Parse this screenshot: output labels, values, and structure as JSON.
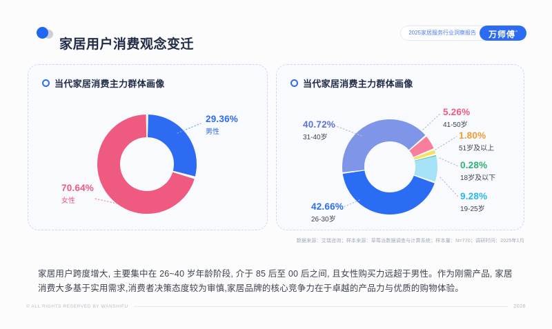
{
  "page": {
    "title": "家居用户消费观念变迁",
    "badge": {
      "report_label": "2025家居服务行业洞察报告",
      "brand": "万师傅",
      "brand_mark": "”"
    },
    "summary": "家居用户跨度增大, 主要集中在 26~40 岁年龄阶段, 介于 85 后至 00 后之间, 且女性购买力远超于男性。作为刚需产品, 家居消费大多基于实用需求,消费者决策态度较为审慎,家居品牌的核心竞争力在于卓越的产品力与优质的购物体验。",
    "source_note": "数据来源：艾瑞咨询；样本来源：草莓派数据调查与计算系统；样本量：N=770；调研时间：2025年1月",
    "footer": {
      "copyright": "© ALL RIGHTS RESERVED BY WANSHIFU",
      "year": "2026"
    },
    "accent_color": "#2d6bf3"
  },
  "cards": [
    {
      "title": "当代家居消费主力群体画像"
    },
    {
      "title": "当代家居消费主力群体画像"
    }
  ],
  "chart_data": [
    {
      "type": "pie",
      "title": "当代家居消费主力群体画像（性别分布）",
      "donut": true,
      "start_angle": 0,
      "legend_position": "callout-labels",
      "slices": [
        {
          "label": "男性",
          "value": 29.36,
          "pct": "29.36%",
          "color": "#2d6bf3",
          "label_color": "#2d6bf3",
          "sub_color": "#2d6bf3"
        },
        {
          "label": "女性",
          "value": 70.64,
          "pct": "70.64%",
          "color": "#ef5a80",
          "label_color": "#ef5a80",
          "sub_color": "#ef5a80"
        }
      ]
    },
    {
      "type": "pie",
      "title": "当代家居消费主力群体画像（年龄分布）",
      "donut": true,
      "start_angle": -97.6,
      "legend_position": "callout-labels",
      "slices": [
        {
          "label": "31-40岁",
          "value": 40.72,
          "pct": "40.72%",
          "color": "#7e95e8",
          "label_color": "#5b74dc",
          "sub_color": "#394050"
        },
        {
          "label": "41-50岁",
          "value": 5.26,
          "pct": "5.26%",
          "color": "#f87e9c",
          "label_color": "#f4577e",
          "sub_color": "#394050"
        },
        {
          "label": "51岁及以上",
          "value": 1.8,
          "pct": "1.80%",
          "color": "#f7e25a",
          "label_color": "#f59a35",
          "sub_color": "#394050"
        },
        {
          "label": "18岁及以下",
          "value": 0.28,
          "pct": "0.28%",
          "color": "#52c98e",
          "label_color": "#2eb273",
          "sub_color": "#394050"
        },
        {
          "label": "19-25岁",
          "value": 9.28,
          "pct": "9.28%",
          "color": "#a5e2f8",
          "label_color": "#29b7ec",
          "sub_color": "#394050"
        },
        {
          "label": "26-30岁",
          "value": 42.66,
          "pct": "42.66%",
          "color": "#2a6df4",
          "label_color": "#2a6df4",
          "sub_color": "#394050"
        }
      ]
    }
  ]
}
